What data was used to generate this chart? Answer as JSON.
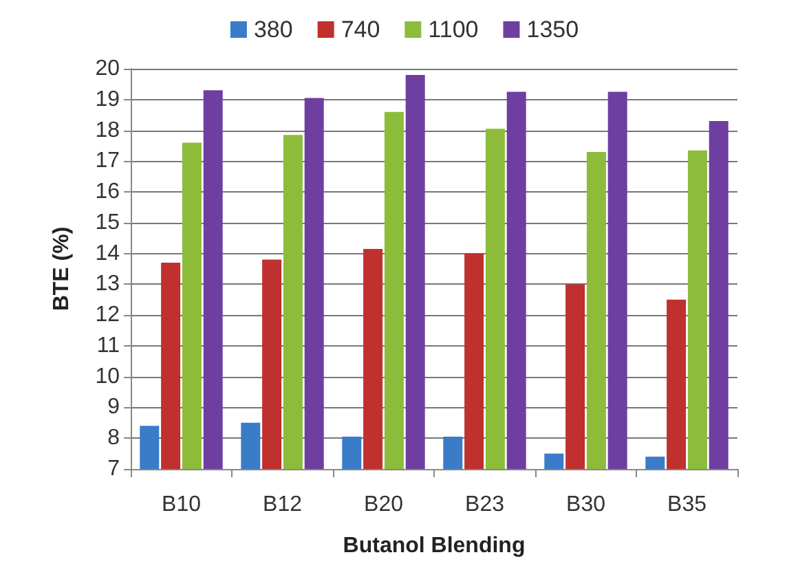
{
  "chart_data": {
    "type": "bar",
    "xlabel": "Butanol Blending",
    "ylabel": "BTE (%)",
    "categories": [
      "B10",
      "B12",
      "B20",
      "B23",
      "B30",
      "B35"
    ],
    "series": [
      {
        "name": "380",
        "color": "#3a7cc8",
        "values": [
          8.4,
          8.5,
          8.05,
          8.05,
          7.5,
          7.4
        ]
      },
      {
        "name": "740",
        "color": "#c0302e",
        "values": [
          13.7,
          13.8,
          14.15,
          14.0,
          13.0,
          12.5
        ]
      },
      {
        "name": "1100",
        "color": "#8cbc3a",
        "values": [
          17.6,
          17.85,
          18.6,
          18.05,
          17.3,
          17.35
        ]
      },
      {
        "name": "1350",
        "color": "#6e3fa0",
        "values": [
          19.3,
          19.05,
          19.8,
          19.25,
          19.25,
          18.3
        ]
      }
    ],
    "ylim": [
      7,
      20
    ],
    "yticks": [
      7,
      8,
      9,
      10,
      11,
      12,
      13,
      14,
      15,
      16,
      17,
      18,
      19,
      20
    ],
    "grid": "y",
    "legend": "top"
  }
}
